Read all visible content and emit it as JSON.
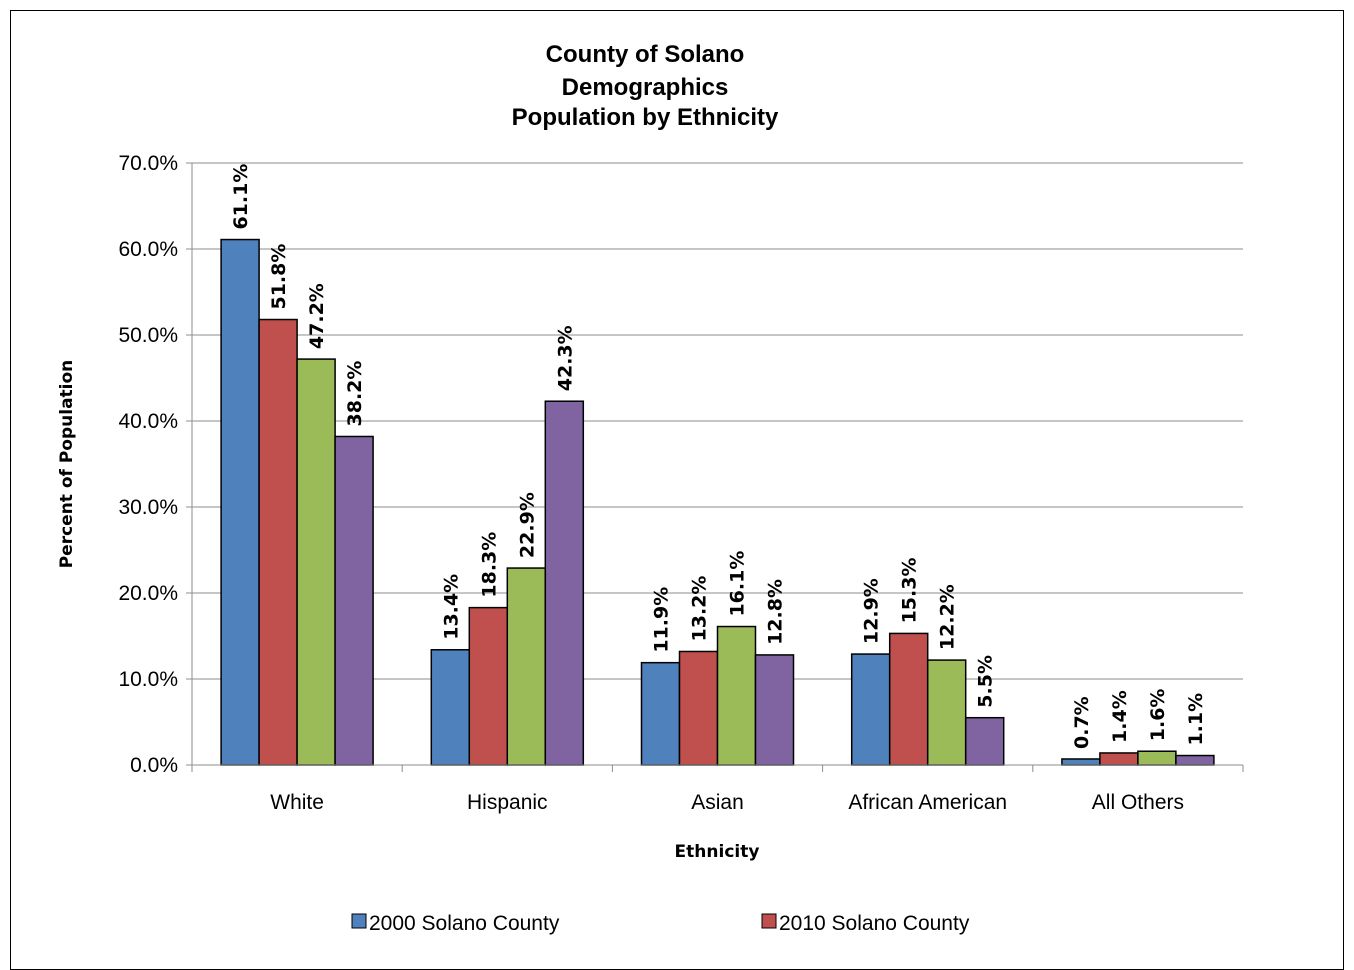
{
  "chart_data": {
    "type": "bar",
    "title": [
      "County of Solano",
      "Demographics",
      "Population by Ethnicity"
    ],
    "xlabel": "Ethnicity",
    "ylabel": "Percent of Population",
    "ylim": [
      0,
      70
    ],
    "yticks": [
      "0.0%",
      "10.0%",
      "20.0%",
      "30.0%",
      "40.0%",
      "50.0%",
      "60.0%",
      "70.0%"
    ],
    "grid": true,
    "legend_position": "bottom",
    "categories": [
      "White",
      "Hispanic",
      "Asian",
      "African American",
      "All Others"
    ],
    "series": [
      {
        "name": "2000 Solano County",
        "color": "#4f81bd",
        "values": [
          61.1,
          13.4,
          11.9,
          12.9,
          0.7
        ],
        "labels": [
          "61.1%",
          "13.4%",
          "11.9%",
          "12.9%",
          "0.7%"
        ]
      },
      {
        "name": "2010 Solano County",
        "color": "#c0504d",
        "values": [
          51.8,
          18.3,
          13.2,
          15.3,
          1.4
        ],
        "labels": [
          "51.8%",
          "18.3%",
          "13.2%",
          "15.3%",
          "1.4%"
        ]
      },
      {
        "name": "",
        "color": "#9bbb59",
        "values": [
          47.2,
          22.9,
          16.1,
          12.2,
          1.6
        ],
        "labels": [
          "47.2%",
          "22.9%",
          "16.1%",
          "12.2%",
          "1.6%"
        ]
      },
      {
        "name": "",
        "color": "#8064a2",
        "values": [
          38.2,
          42.3,
          12.8,
          5.5,
          1.1
        ],
        "labels": [
          "38.2%",
          "42.3%",
          "12.8%",
          "5.5%",
          "1.1%"
        ]
      }
    ]
  }
}
